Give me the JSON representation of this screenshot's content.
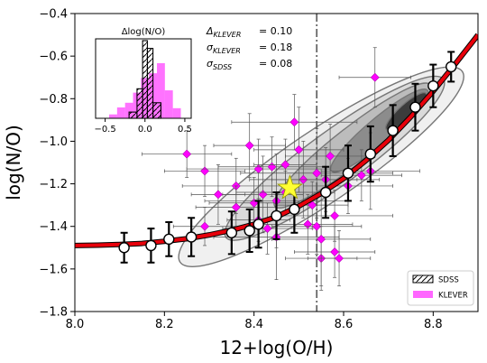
{
  "chart_data": {
    "type": "scatter",
    "xlabel": "12+log(O/H)",
    "ylabel": "log(N/O)",
    "xlim": [
      8.0,
      8.9
    ],
    "ylim": [
      -1.8,
      -0.4
    ],
    "xticks": [
      "8.0",
      "8.2",
      "8.4",
      "8.6",
      "8.8"
    ],
    "xtick_values": [
      8.0,
      8.2,
      8.4,
      8.6,
      8.8
    ],
    "yticks": [
      "−1.8",
      "−1.6",
      "−1.4",
      "−1.2",
      "−1.0",
      "−0.8",
      "−0.6",
      "−0.4"
    ],
    "ytick_values": [
      -1.8,
      -1.6,
      -1.4,
      -1.2,
      -1.0,
      -0.8,
      -0.6,
      -0.4
    ],
    "vline_x": 8.54,
    "colors": {
      "fit": "#e8000b",
      "klever": "#ff00ff",
      "star": "#ffff33",
      "contour": "#777777"
    },
    "fit_curve": {
      "x": [
        8.0,
        8.05,
        8.1,
        8.15,
        8.2,
        8.25,
        8.3,
        8.35,
        8.4,
        8.45,
        8.5,
        8.55,
        8.6,
        8.65,
        8.7,
        8.75,
        8.8,
        8.85,
        8.9
      ],
      "y": [
        -1.49,
        -1.488,
        -1.485,
        -1.48,
        -1.47,
        -1.458,
        -1.44,
        -1.418,
        -1.39,
        -1.355,
        -1.305,
        -1.245,
        -1.175,
        -1.09,
        -0.995,
        -0.885,
        -0.765,
        -0.635,
        -0.5
      ]
    },
    "binned_sdss": {
      "x": [
        8.11,
        8.17,
        8.21,
        8.26,
        8.35,
        8.39,
        8.41,
        8.45,
        8.49,
        8.56,
        8.61,
        8.66,
        8.71,
        8.76,
        8.8,
        8.84
      ],
      "y": [
        -1.5,
        -1.49,
        -1.46,
        -1.45,
        -1.43,
        -1.42,
        -1.39,
        -1.35,
        -1.32,
        -1.24,
        -1.15,
        -1.06,
        -0.95,
        -0.84,
        -0.74,
        -0.65
      ],
      "yerr": [
        0.07,
        0.08,
        0.08,
        0.09,
        0.1,
        0.1,
        0.11,
        0.11,
        0.11,
        0.12,
        0.13,
        0.13,
        0.12,
        0.11,
        0.1,
        0.07
      ]
    },
    "klever": {
      "x": [
        8.25,
        8.29,
        8.29,
        8.32,
        8.36,
        8.36,
        8.39,
        8.4,
        8.41,
        8.41,
        8.42,
        8.43,
        8.44,
        8.45,
        8.45,
        8.47,
        8.47,
        8.49,
        8.5,
        8.51,
        8.52,
        8.53,
        8.54,
        8.54,
        8.55,
        8.55,
        8.56,
        8.57,
        8.58,
        8.58,
        8.59,
        8.61,
        8.64,
        8.66,
        8.67
      ],
      "y": [
        -1.06,
        -1.14,
        -1.4,
        -1.25,
        -1.21,
        -1.31,
        -1.02,
        -1.29,
        -1.13,
        -1.37,
        -1.25,
        -1.41,
        -1.12,
        -1.45,
        -1.28,
        -1.11,
        -1.24,
        -0.91,
        -1.04,
        -1.18,
        -1.39,
        -1.3,
        -1.15,
        -1.4,
        -1.55,
        -1.46,
        -1.18,
        -1.07,
        -1.52,
        -1.35,
        -1.55,
        -1.21,
        -1.16,
        -1.14,
        -0.7
      ],
      "xerr": [
        0.1,
        0.09,
        0.07,
        0.06,
        0.12,
        0.09,
        0.08,
        0.1,
        0.16,
        0.07,
        0.09,
        0.1,
        0.12,
        0.14,
        0.16,
        0.07,
        0.11,
        0.14,
        0.1,
        0.12,
        0.1,
        0.08,
        0.17,
        0.1,
        0.08,
        0.11,
        0.12,
        0.1,
        0.09,
        0.13,
        0.07,
        0.1,
        0.09,
        0.11,
        0.08
      ],
      "yerr": [
        0.11,
        0.12,
        0.09,
        0.14,
        0.13,
        0.1,
        0.15,
        0.12,
        0.14,
        0.1,
        0.18,
        0.12,
        0.14,
        0.2,
        0.22,
        0.12,
        0.1,
        0.13,
        0.2,
        0.18,
        0.14,
        0.11,
        0.21,
        0.13,
        0.15,
        0.22,
        0.15,
        0.15,
        0.12,
        0.12,
        0.13,
        0.13,
        0.12,
        0.18,
        0.14
      ]
    },
    "star": {
      "x": 8.48,
      "y": -1.22
    },
    "contours": [
      {
        "level": 1,
        "fill": "#f0f0f0",
        "cx": 8.55,
        "cy": -1.12,
        "rx": 0.38,
        "ry": 0.08,
        "tilt_deg": 34
      },
      {
        "level": 2,
        "fill": "#dadada",
        "cx": 8.58,
        "cy": -1.08,
        "rx": 0.3,
        "ry": 0.06,
        "tilt_deg": 36
      },
      {
        "level": 3,
        "fill": "#bcbcbc",
        "cx": 8.62,
        "cy": -1.02,
        "rx": 0.22,
        "ry": 0.04,
        "tilt_deg": 38
      },
      {
        "level": 4,
        "fill": "#8c8c8c",
        "cx": 8.68,
        "cy": -0.95,
        "rx": 0.14,
        "ry": 0.028,
        "tilt_deg": 40
      },
      {
        "level": 5,
        "fill": "#3c3c3c",
        "cx": 8.74,
        "cy": -0.86,
        "rx": 0.06,
        "ry": 0.016,
        "tilt_deg": 42
      }
    ],
    "annotations": [
      {
        "sym": "Δ",
        "sub": "KLEVER",
        "value": "= 0.10"
      },
      {
        "sym": "σ",
        "sub": "KLEVER",
        "value": "= 0.18"
      },
      {
        "sym": "σ",
        "sub": "SDSS",
        "value": "= 0.08"
      }
    ],
    "legend": {
      "placement": "lower-right",
      "entries": [
        "SDSS",
        "KLEVER"
      ]
    },
    "inset": {
      "title": "Δlog(N/O)",
      "xlim": [
        -0.62,
        0.58
      ],
      "xticks": [
        "−0.5",
        "0.0",
        "0.5"
      ],
      "xtick_values": [
        -0.5,
        0.0,
        0.5
      ],
      "klever_bins": [
        {
          "left": -0.45,
          "right": -0.35,
          "h": 0.05
        },
        {
          "left": -0.35,
          "right": -0.25,
          "h": 0.14
        },
        {
          "left": -0.25,
          "right": -0.15,
          "h": 0.2
        },
        {
          "left": -0.15,
          "right": -0.05,
          "h": 0.33
        },
        {
          "left": -0.05,
          "right": 0.05,
          "h": 0.52
        },
        {
          "left": 0.05,
          "right": 0.15,
          "h": 0.58
        },
        {
          "left": 0.15,
          "right": 0.25,
          "h": 0.71
        },
        {
          "left": 0.25,
          "right": 0.35,
          "h": 0.36
        },
        {
          "left": 0.35,
          "right": 0.45,
          "h": 0.13
        }
      ],
      "sdss_bins": [
        {
          "left": -0.2,
          "right": -0.1,
          "h": 0.08
        },
        {
          "left": -0.1,
          "right": -0.03,
          "h": 0.38
        },
        {
          "left": -0.03,
          "right": 0.03,
          "h": 1.0
        },
        {
          "left": 0.03,
          "right": 0.1,
          "h": 0.9
        },
        {
          "left": 0.1,
          "right": 0.2,
          "h": 0.2
        }
      ]
    }
  }
}
